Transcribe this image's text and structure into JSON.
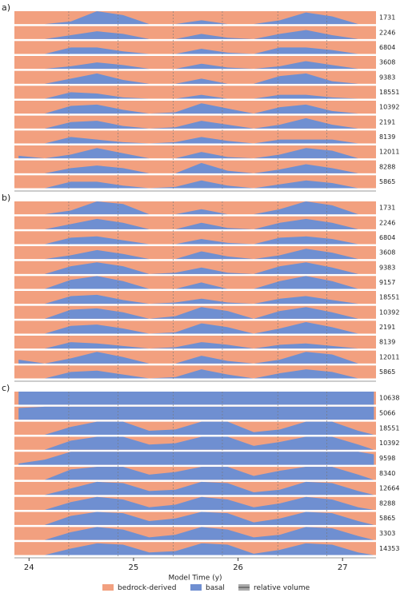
{
  "chart_data": [
    {
      "type": "strip",
      "label": "a)",
      "xlim": [
        23.86,
        27.32
      ],
      "x": [
        23.9,
        24.15,
        24.4,
        24.65,
        24.9,
        25.15,
        25.4,
        25.65,
        25.9,
        26.15,
        26.4,
        26.65,
        26.9,
        27.15,
        27.3
      ],
      "series": [
        {
          "name": "1731",
          "values": [
            0,
            0,
            0.2,
            1,
            0.7,
            0,
            0,
            0.3,
            0,
            0,
            0.3,
            0.9,
            0.6,
            0,
            0
          ]
        },
        {
          "name": "2246",
          "values": [
            0,
            0,
            0.3,
            0.6,
            0.4,
            0,
            0,
            0.4,
            0.1,
            0,
            0.4,
            0.7,
            0.3,
            0,
            0
          ]
        },
        {
          "name": "6804",
          "values": [
            0,
            0,
            0.5,
            0.5,
            0.2,
            0,
            0,
            0.4,
            0.1,
            0,
            0.5,
            0.5,
            0.3,
            0,
            0
          ]
        },
        {
          "name": "3608",
          "values": [
            0,
            0,
            0.2,
            0.5,
            0.3,
            0,
            0,
            0.4,
            0.1,
            0,
            0.2,
            0.6,
            0.3,
            0,
            0
          ]
        },
        {
          "name": "9383",
          "values": [
            0,
            0,
            0.4,
            0.8,
            0.3,
            0,
            0,
            0.4,
            0,
            0,
            0.6,
            0.8,
            0.2,
            0,
            0
          ]
        },
        {
          "name": "18551",
          "values": [
            0,
            0,
            0.5,
            0.4,
            0.1,
            0,
            0,
            0.3,
            0,
            0,
            0.3,
            0.3,
            0.1,
            0,
            0
          ]
        },
        {
          "name": "10392",
          "values": [
            0,
            0,
            0.6,
            0.7,
            0.3,
            0,
            0.1,
            0.8,
            0.4,
            0,
            0.5,
            0.7,
            0.2,
            0,
            0
          ]
        },
        {
          "name": "2191",
          "values": [
            0,
            0,
            0.5,
            0.6,
            0.2,
            0,
            0.1,
            0.6,
            0.3,
            0,
            0.3,
            0.8,
            0.3,
            0,
            0
          ]
        },
        {
          "name": "8139",
          "values": [
            0,
            0,
            0.5,
            0.3,
            0.1,
            0,
            0.1,
            0.5,
            0.2,
            0,
            0.3,
            0.3,
            0.3,
            0,
            0
          ]
        },
        {
          "name": "12011",
          "values": [
            0.2,
            0,
            0.3,
            0.8,
            0.4,
            0,
            0,
            0.5,
            0.1,
            0,
            0.3,
            0.8,
            0.6,
            0,
            0
          ]
        },
        {
          "name": "8288",
          "values": [
            0,
            0,
            0.4,
            0.6,
            0.4,
            0,
            0,
            0.8,
            0.2,
            0,
            0.3,
            0.7,
            0.4,
            0,
            0
          ]
        },
        {
          "name": "5865",
          "values": [
            0,
            0,
            0.5,
            0.5,
            0.2,
            0,
            0.1,
            0.6,
            0.2,
            0,
            0.3,
            0.6,
            0.4,
            0,
            0
          ]
        }
      ]
    },
    {
      "type": "strip",
      "label": "b)",
      "xlim": [
        23.86,
        27.32
      ],
      "x": [
        23.9,
        24.15,
        24.4,
        24.65,
        24.9,
        25.15,
        25.4,
        25.65,
        25.9,
        26.15,
        26.4,
        26.65,
        26.9,
        27.15,
        27.3
      ],
      "series": [
        {
          "name": "1731",
          "values": [
            0,
            0,
            0.3,
            1,
            0.8,
            0,
            0,
            0.4,
            0,
            0,
            0.4,
            1,
            0.7,
            0,
            0
          ]
        },
        {
          "name": "2246",
          "values": [
            0,
            0,
            0.4,
            0.8,
            0.5,
            0,
            0,
            0.5,
            0.1,
            0,
            0.5,
            0.8,
            0.5,
            0,
            0
          ]
        },
        {
          "name": "6804",
          "values": [
            0,
            0,
            0.5,
            0.6,
            0.3,
            0,
            0,
            0.4,
            0.1,
            0,
            0.5,
            0.6,
            0.4,
            0,
            0
          ]
        },
        {
          "name": "3608",
          "values": [
            0,
            0,
            0.3,
            0.7,
            0.4,
            0,
            0,
            0.6,
            0.2,
            0,
            0.3,
            0.8,
            0.5,
            0,
            0
          ]
        },
        {
          "name": "9383",
          "values": [
            0,
            0,
            0.6,
            0.9,
            0.6,
            0,
            0.1,
            0.5,
            0.1,
            0,
            0.6,
            0.9,
            0.5,
            0,
            0
          ]
        },
        {
          "name": "9157",
          "values": [
            0,
            0,
            0.7,
            1,
            0.6,
            0,
            0,
            0.5,
            0,
            0,
            0.6,
            1,
            0.6,
            0,
            0
          ]
        },
        {
          "name": "18551",
          "values": [
            0,
            0,
            0.6,
            0.7,
            0.3,
            0,
            0.1,
            0.4,
            0.1,
            0,
            0.4,
            0.6,
            0.3,
            0,
            0
          ]
        },
        {
          "name": "10392",
          "values": [
            0,
            0,
            0.7,
            0.8,
            0.5,
            0,
            0.2,
            0.9,
            0.6,
            0,
            0.6,
            0.9,
            0.5,
            0,
            0
          ]
        },
        {
          "name": "2191",
          "values": [
            0,
            0,
            0.6,
            0.7,
            0.4,
            0,
            0.1,
            0.8,
            0.5,
            0,
            0.4,
            0.9,
            0.5,
            0,
            0
          ]
        },
        {
          "name": "8139",
          "values": [
            0,
            0,
            0.5,
            0.4,
            0.2,
            0,
            0.1,
            0.5,
            0.3,
            0,
            0.3,
            0.4,
            0.2,
            0,
            0
          ]
        },
        {
          "name": "12011",
          "values": [
            0.3,
            0,
            0.4,
            0.9,
            0.5,
            0,
            0,
            0.6,
            0.2,
            0,
            0.3,
            0.9,
            0.7,
            0,
            0
          ]
        },
        {
          "name": "5865",
          "values": [
            0,
            0,
            0.5,
            0.6,
            0.3,
            0,
            0.1,
            0.7,
            0.3,
            0,
            0.4,
            0.7,
            0.5,
            0,
            0
          ]
        }
      ]
    },
    {
      "type": "strip",
      "label": "c)",
      "xlim": [
        23.86,
        27.32
      ],
      "x": [
        23.9,
        24.15,
        24.4,
        24.65,
        24.9,
        25.15,
        25.4,
        25.65,
        25.9,
        26.15,
        26.4,
        26.65,
        26.9,
        27.15,
        27.3
      ],
      "xticks": [
        24,
        25,
        26,
        27
      ],
      "xlabel": "Model Time (y)",
      "series": [
        {
          "name": "10638",
          "values": [
            1,
            1,
            1,
            1,
            1,
            1,
            1,
            1,
            1,
            1,
            1,
            1,
            1,
            1,
            1
          ]
        },
        {
          "name": "5066",
          "values": [
            0.9,
            1,
            1,
            1,
            1,
            1,
            1,
            1,
            1,
            1,
            1,
            1,
            1,
            1,
            1
          ]
        },
        {
          "name": "18551",
          "values": [
            0,
            0,
            0.6,
            1,
            1,
            0.3,
            0.4,
            1,
            1,
            0.2,
            0.4,
            1,
            1,
            0.3,
            0
          ]
        },
        {
          "name": "10392",
          "values": [
            0,
            0,
            0.7,
            1,
            1,
            0.4,
            0.5,
            1,
            1,
            0.3,
            0.6,
            1,
            1,
            0.4,
            0
          ]
        },
        {
          "name": "9598",
          "values": [
            0.1,
            0.4,
            1,
            1,
            1,
            1,
            1,
            1,
            1,
            1,
            1,
            1,
            1,
            1,
            0.8
          ]
        },
        {
          "name": "8340",
          "values": [
            0,
            0,
            0.8,
            1,
            1,
            0.4,
            0.6,
            1,
            1,
            0.3,
            0.7,
            1,
            1,
            0.4,
            0
          ]
        },
        {
          "name": "12664",
          "values": [
            0,
            0,
            0.5,
            1,
            0.9,
            0.3,
            0.4,
            1,
            0.9,
            0.2,
            0.4,
            1,
            0.9,
            0.3,
            0
          ]
        },
        {
          "name": "8288",
          "values": [
            0,
            0,
            0.6,
            1,
            0.8,
            0.2,
            0.4,
            1,
            0.8,
            0.2,
            0.5,
            1,
            0.8,
            0.2,
            0
          ]
        },
        {
          "name": "5865",
          "values": [
            0,
            0,
            0.7,
            1,
            0.9,
            0.3,
            0.5,
            1,
            0.9,
            0.2,
            0.5,
            1,
            0.9,
            0.3,
            0
          ]
        },
        {
          "name": "3303",
          "values": [
            0,
            0,
            0.6,
            1,
            0.8,
            0.2,
            0.4,
            1,
            0.8,
            0.2,
            0.4,
            1,
            0.9,
            0.3,
            0
          ]
        },
        {
          "name": "14353",
          "values": [
            0,
            0,
            0.5,
            0.9,
            0.8,
            0.2,
            0.3,
            0.9,
            0.8,
            0.1,
            0.4,
            0.9,
            0.8,
            0.2,
            0
          ]
        }
      ]
    }
  ],
  "reference_lines": [
    24.38,
    24.85,
    25.38,
    25.85,
    26.38,
    26.85
  ],
  "legend": [
    {
      "name": "bedrock-derived",
      "color": "#f2a07f"
    },
    {
      "name": "basal",
      "color": "#6f8fd1"
    },
    {
      "name": "relative volume",
      "color": "#555555"
    }
  ]
}
